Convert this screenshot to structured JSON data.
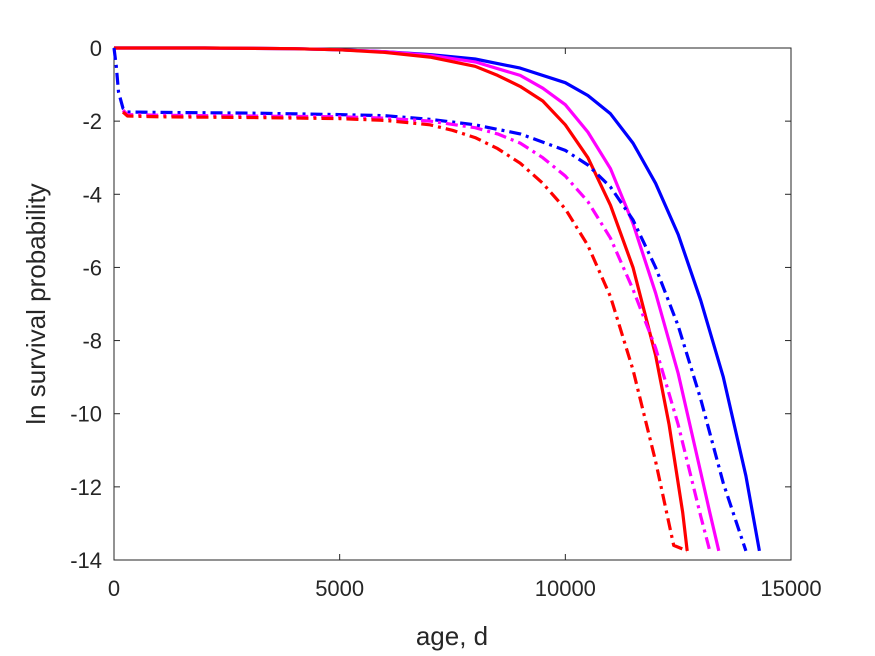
{
  "chart_data": {
    "type": "line",
    "title": "",
    "xlabel": "age, d",
    "ylabel": "ln survival probability",
    "xlim": [
      0,
      15000
    ],
    "ylim": [
      -14,
      0
    ],
    "xticks": [
      0,
      5000,
      10000,
      15000
    ],
    "yticks": [
      -14,
      -12,
      -10,
      -8,
      -6,
      -4,
      -2,
      0
    ],
    "grid": false,
    "legend": "none",
    "series": [
      {
        "color": "#0000ff",
        "style": "solid",
        "x": [
          0,
          2000,
          4000,
          5000,
          6000,
          7000,
          8000,
          9000,
          10000,
          10500,
          11000,
          11500,
          12000,
          12500,
          13000,
          13500,
          14000,
          14300
        ],
        "y": [
          0,
          0,
          -0.02,
          -0.05,
          -0.1,
          -0.18,
          -0.3,
          -0.55,
          -0.95,
          -1.3,
          -1.8,
          -2.6,
          -3.7,
          -5.1,
          -6.9,
          -9.0,
          -11.7,
          -13.75
        ]
      },
      {
        "color": "#ff00ff",
        "style": "solid",
        "x": [
          0,
          2000,
          4000,
          5000,
          6000,
          7000,
          8000,
          9000,
          9500,
          10000,
          10500,
          11000,
          11500,
          12000,
          12500,
          13000,
          13200,
          13400
        ],
        "y": [
          0,
          0,
          -0.02,
          -0.05,
          -0.1,
          -0.2,
          -0.38,
          -0.75,
          -1.1,
          -1.55,
          -2.3,
          -3.3,
          -4.8,
          -6.7,
          -8.9,
          -11.6,
          -12.7,
          -13.75
        ]
      },
      {
        "color": "#ff0000",
        "style": "solid",
        "x": [
          0,
          2000,
          4000,
          5000,
          6000,
          7000,
          8000,
          8500,
          9000,
          9500,
          10000,
          10500,
          11000,
          11500,
          12000,
          12300,
          12600,
          12700
        ],
        "y": [
          0,
          0,
          -0.02,
          -0.05,
          -0.12,
          -0.25,
          -0.5,
          -0.75,
          -1.05,
          -1.45,
          -2.1,
          -3.0,
          -4.3,
          -6.0,
          -8.4,
          -10.3,
          -12.7,
          -13.75
        ]
      },
      {
        "color": "#0000ff",
        "style": "dashdot",
        "x": [
          0,
          50,
          100,
          200,
          300,
          1000,
          3000,
          5000,
          6000,
          7000,
          8000,
          9000,
          10000,
          10500,
          11000,
          11500,
          12000,
          12500,
          13000,
          13500,
          14000
        ],
        "y": [
          0,
          -0.5,
          -1.2,
          -1.65,
          -1.75,
          -1.76,
          -1.78,
          -1.82,
          -1.85,
          -1.95,
          -2.1,
          -2.35,
          -2.8,
          -3.2,
          -3.8,
          -4.7,
          -6.0,
          -7.6,
          -9.6,
          -11.9,
          -13.75
        ]
      },
      {
        "color": "#ff00ff",
        "style": "dashdot",
        "x": [
          200,
          300,
          1000,
          3000,
          5000,
          6000,
          7000,
          8000,
          8500,
          9000,
          9500,
          10000,
          10500,
          11000,
          11500,
          12000,
          12500,
          13000,
          13200
        ],
        "y": [
          -1.7,
          -1.82,
          -1.84,
          -1.86,
          -1.88,
          -1.92,
          -2.0,
          -2.18,
          -2.35,
          -2.6,
          -3.0,
          -3.5,
          -4.2,
          -5.2,
          -6.6,
          -8.2,
          -10.3,
          -12.8,
          -13.75
        ]
      },
      {
        "color": "#ff0000",
        "style": "dashdot",
        "x": [
          200,
          300,
          1000,
          3000,
          5000,
          6000,
          7000,
          7500,
          8000,
          8500,
          9000,
          9500,
          10000,
          10500,
          11000,
          11500,
          12000,
          12400,
          12700
        ],
        "y": [
          -1.75,
          -1.86,
          -1.88,
          -1.9,
          -1.93,
          -1.98,
          -2.1,
          -2.25,
          -2.45,
          -2.75,
          -3.15,
          -3.7,
          -4.4,
          -5.4,
          -6.8,
          -8.8,
          -11.3,
          -13.6,
          -13.75
        ]
      }
    ]
  }
}
